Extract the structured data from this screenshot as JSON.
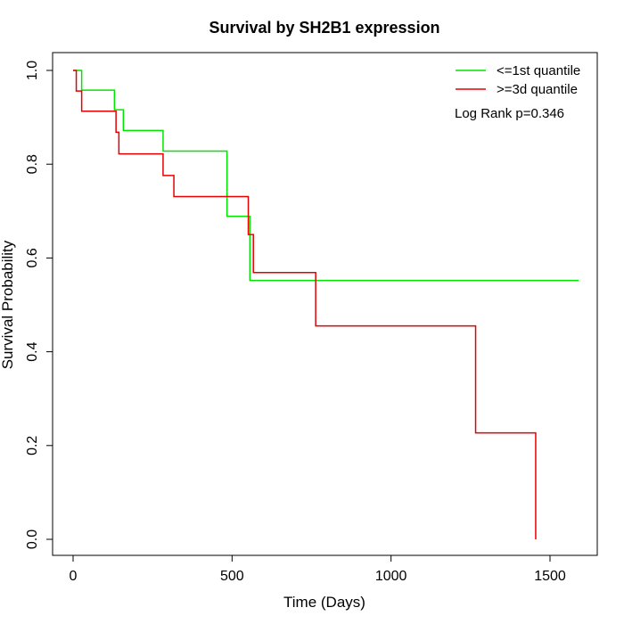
{
  "chart_data": {
    "type": "line",
    "title": "Survival by SH2B1 expression",
    "xlabel": "Time (Days)",
    "ylabel": "Survival Probability",
    "xlim": [
      0,
      1650
    ],
    "ylim": [
      0,
      1.0
    ],
    "x_ticks": [
      0,
      500,
      1000,
      1500
    ],
    "x_tick_labels": [
      "0",
      "500",
      "1000",
      "1500"
    ],
    "y_ticks": [
      0.0,
      0.2,
      0.4,
      0.6,
      0.8,
      1.0
    ],
    "y_tick_labels": [
      "0.0",
      "0.2",
      "0.4",
      "0.6",
      "0.8",
      "1.0"
    ],
    "legend_position": "top-right",
    "annotation": "Log Rank p=0.346",
    "series": [
      {
        "name": "<=1st quantile",
        "color": "#00e600",
        "steps": [
          [
            0,
            1.0
          ],
          [
            27,
            0.958
          ],
          [
            130,
            0.916
          ],
          [
            158,
            0.872
          ],
          [
            283,
            0.828
          ],
          [
            484,
            0.689
          ],
          [
            556,
            0.552
          ],
          [
            1590,
            0.552
          ]
        ]
      },
      {
        "name": ">=3d quantile",
        "color": "#e60000",
        "steps": [
          [
            0,
            1.0
          ],
          [
            10,
            0.956
          ],
          [
            27,
            0.913
          ],
          [
            135,
            0.868
          ],
          [
            144,
            0.822
          ],
          [
            283,
            0.776
          ],
          [
            317,
            0.731
          ],
          [
            551,
            0.65
          ],
          [
            567,
            0.569
          ],
          [
            763,
            0.455
          ],
          [
            1266,
            0.227
          ],
          [
            1455,
            0.0
          ]
        ]
      }
    ]
  }
}
